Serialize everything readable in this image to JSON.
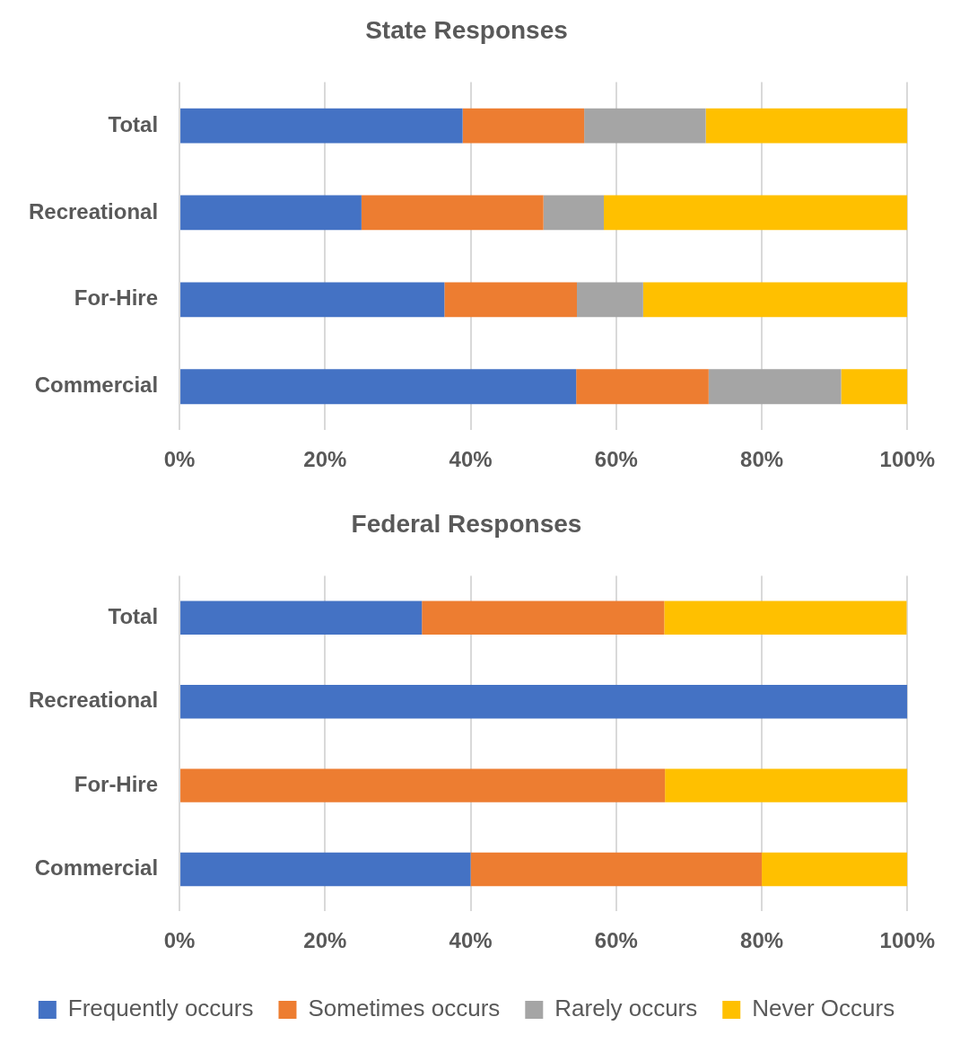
{
  "chart_data": [
    {
      "type": "bar",
      "title": "State Responses",
      "orientation": "horizontal",
      "stacked": true,
      "categories": [
        "Total",
        "Recreational",
        "For-Hire",
        "Commercial"
      ],
      "series": [
        {
          "color": "#4472c4",
          "values": [
            38.9,
            25,
            36.4,
            54.5
          ]
        },
        {
          "color": "#ed7d31",
          "values": [
            16.7,
            25,
            18.2,
            18.2
          ]
        },
        {
          "color": "#a5a5a5",
          "values": [
            16.7,
            8.3,
            9.1,
            18.2
          ]
        },
        {
          "color": "#ffc000",
          "values": [
            27.7,
            41.7,
            36.3,
            9.1
          ]
        }
      ],
      "xlim": [
        0,
        100
      ],
      "xticks": [
        {
          "value": 0,
          "label": "0%"
        },
        {
          "value": 20,
          "label": "20%"
        },
        {
          "value": 40,
          "label": "40%"
        },
        {
          "value": 60,
          "label": "60%"
        },
        {
          "value": 80,
          "label": "80%"
        },
        {
          "value": 100,
          "label": "100%"
        }
      ],
      "grid": "x",
      "legend": false
    },
    {
      "type": "bar",
      "title": "Federal Responses",
      "orientation": "horizontal",
      "stacked": true,
      "categories": [
        "Total",
        "Recreational",
        "For-Hire",
        "Commercial"
      ],
      "series": [
        {
          "name": "Frequently occurs",
          "color": "#4472c4",
          "values": [
            33.3,
            100,
            0,
            40
          ]
        },
        {
          "name": "Sometimes occurs",
          "color": "#ed7d31",
          "values": [
            33.3,
            0,
            66.7,
            40
          ]
        },
        {
          "name": "Rarely occurs",
          "color": "#a5a5a5",
          "values": [
            0,
            0,
            0,
            0
          ]
        },
        {
          "name": "Never Occurs",
          "color": "#ffc000",
          "values": [
            33.3,
            0,
            33.3,
            20
          ]
        }
      ],
      "xlim": [
        0,
        100
      ],
      "xticks": [
        {
          "value": 0,
          "label": "0%"
        },
        {
          "value": 20,
          "label": "20%"
        },
        {
          "value": 40,
          "label": "40%"
        },
        {
          "value": 60,
          "label": "60%"
        },
        {
          "value": 80,
          "label": "80%"
        },
        {
          "value": 100,
          "label": "100%"
        }
      ],
      "grid": "x",
      "legend": "bottom"
    }
  ]
}
